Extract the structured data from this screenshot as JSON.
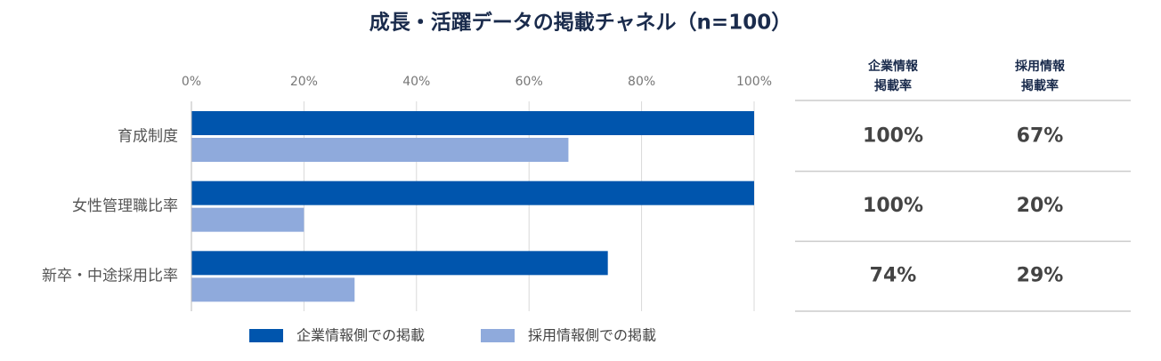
{
  "chart_data": {
    "type": "bar",
    "orientation": "horizontal",
    "title": "成長・活躍データの掲載チャネル（n=100）",
    "categories": [
      "育成制度",
      "女性管理職比率",
      "新卒・中途採用比率"
    ],
    "series": [
      {
        "name": "企業情報側での掲載",
        "color": "#0055ad",
        "values": [
          100,
          100,
          74
        ],
        "value_labels": [
          "100%",
          "100%",
          "74%"
        ]
      },
      {
        "name": "採用情報側での掲載",
        "color": "#8faadc",
        "values": [
          67,
          20,
          29
        ],
        "value_labels": [
          "67%",
          "20%",
          "29%"
        ]
      }
    ],
    "xlim": [
      0,
      100
    ],
    "xticks": [
      {
        "value": 0,
        "label": "0%"
      },
      {
        "value": 20,
        "label": "20%"
      },
      {
        "value": 40,
        "label": "40%"
      },
      {
        "value": 60,
        "label": "60%"
      },
      {
        "value": 80,
        "label": "80%"
      },
      {
        "value": 100,
        "label": "100%"
      }
    ],
    "grid": true,
    "legend": "bottom",
    "table_headers": [
      [
        "企業情報",
        "掲載率"
      ],
      [
        "採用情報",
        "掲載率"
      ]
    ]
  }
}
